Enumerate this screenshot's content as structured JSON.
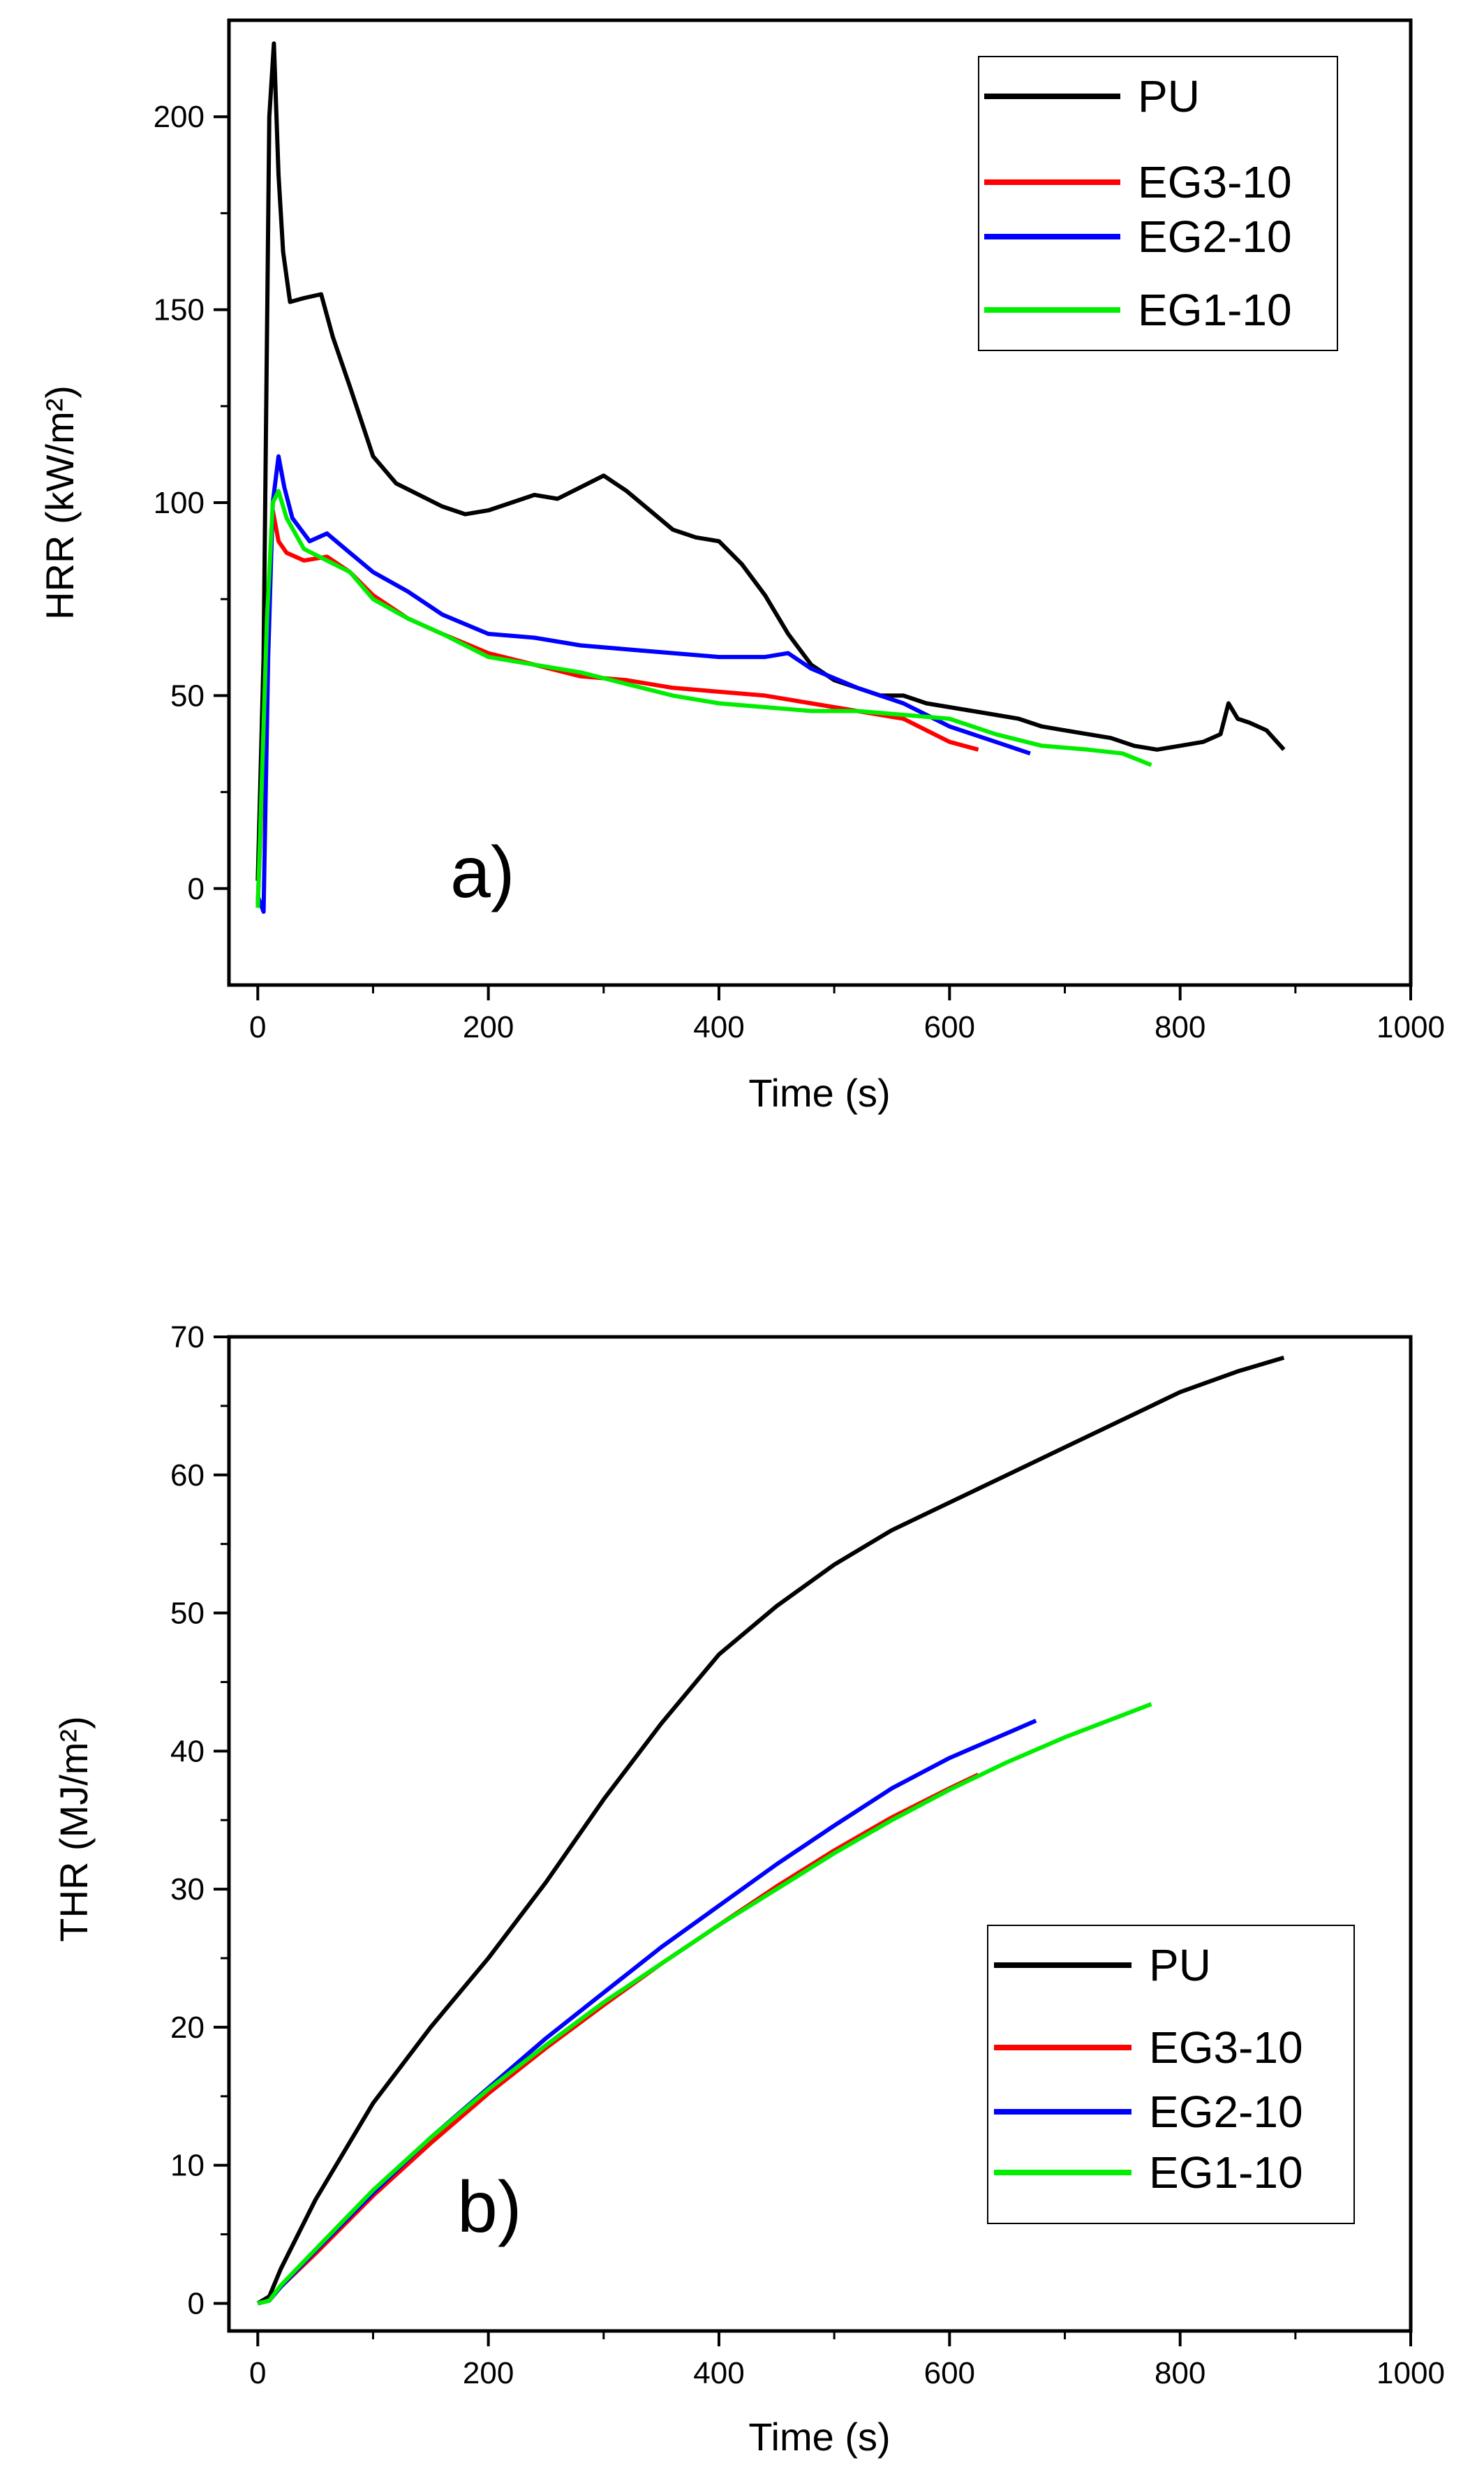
{
  "colors": {
    "PU": "#000000",
    "EG3-10": "#ff0000",
    "EG2-10": "#0000ff",
    "EG1-10": "#00ee00"
  },
  "chart_data": [
    {
      "type": "line",
      "panel_label": "a)",
      "xlabel": "Time (s)",
      "ylabel": "HRR (kW/m²)",
      "xlim": [
        -25,
        1000
      ],
      "ylim": [
        -25,
        225
      ],
      "xticks": [
        0,
        200,
        400,
        600,
        800,
        1000
      ],
      "yticks": [
        0,
        50,
        100,
        150,
        200
      ],
      "xtick_labels": [
        "0",
        "200",
        "400",
        "600",
        "800",
        "1000"
      ],
      "ytick_labels": [
        "0",
        "50",
        "100",
        "150",
        "200"
      ],
      "legend_position": "top-right",
      "series": [
        {
          "name": "PU",
          "x": [
            0,
            5,
            10,
            14,
            18,
            22,
            28,
            40,
            55,
            65,
            80,
            100,
            120,
            140,
            160,
            180,
            200,
            220,
            240,
            260,
            280,
            300,
            320,
            340,
            360,
            380,
            400,
            420,
            440,
            460,
            480,
            500,
            520,
            540,
            560,
            580,
            600,
            620,
            640,
            660,
            680,
            700,
            720,
            740,
            760,
            780,
            800,
            820,
            835,
            842,
            850,
            860,
            875,
            890
          ],
          "y": [
            2,
            60,
            200,
            219,
            185,
            165,
            152,
            153,
            154,
            143,
            130,
            112,
            105,
            102,
            99,
            97,
            98,
            100,
            102,
            101,
            104,
            107,
            103,
            98,
            93,
            91,
            90,
            84,
            76,
            66,
            58,
            54,
            52,
            50,
            50,
            48,
            47,
            46,
            45,
            44,
            42,
            41,
            40,
            39,
            37,
            36,
            37,
            38,
            40,
            48,
            44,
            43,
            41,
            36
          ]
        },
        {
          "name": "EG3-10",
          "x": [
            0,
            8,
            13,
            18,
            25,
            40,
            60,
            80,
            100,
            130,
            160,
            200,
            240,
            280,
            320,
            360,
            400,
            440,
            480,
            520,
            560,
            600,
            625
          ],
          "y": [
            -4,
            60,
            98,
            90,
            87,
            85,
            86,
            82,
            76,
            70,
            66,
            61,
            58,
            55,
            54,
            52,
            51,
            50,
            48,
            46,
            44,
            38,
            36
          ]
        },
        {
          "name": "EG2-10",
          "x": [
            0,
            5,
            9,
            13,
            18,
            23,
            30,
            45,
            60,
            80,
            100,
            130,
            160,
            200,
            240,
            280,
            320,
            360,
            400,
            440,
            460,
            480,
            520,
            560,
            600,
            640,
            670
          ],
          "y": [
            -2,
            -6,
            60,
            100,
            112,
            104,
            96,
            90,
            92,
            87,
            82,
            77,
            71,
            66,
            65,
            63,
            62,
            61,
            60,
            60,
            61,
            57,
            52,
            48,
            42,
            38,
            35
          ]
        },
        {
          "name": "EG1-10",
          "x": [
            0,
            8,
            13,
            18,
            25,
            40,
            60,
            80,
            100,
            130,
            160,
            200,
            240,
            280,
            320,
            360,
            400,
            440,
            480,
            520,
            560,
            600,
            640,
            680,
            720,
            750,
            775
          ],
          "y": [
            -5,
            70,
            100,
            103,
            96,
            88,
            85,
            82,
            75,
            70,
            66,
            60,
            58,
            56,
            53,
            50,
            48,
            47,
            46,
            46,
            45,
            44,
            40,
            37,
            36,
            35,
            32
          ]
        }
      ]
    },
    {
      "type": "line",
      "panel_label": "b)",
      "xlabel": "Time (s)",
      "ylabel": "THR (MJ/m²)",
      "xlim": [
        -25,
        1000
      ],
      "ylim": [
        -2,
        70
      ],
      "xticks": [
        0,
        200,
        400,
        600,
        800,
        1000
      ],
      "yticks": [
        0,
        10,
        20,
        30,
        40,
        50,
        60,
        70
      ],
      "xtick_labels": [
        "0",
        "200",
        "400",
        "600",
        "800",
        "1000"
      ],
      "ytick_labels": [
        "0",
        "10",
        "20",
        "30",
        "40",
        "50",
        "60",
        "70"
      ],
      "legend_position": "bottom-right",
      "series": [
        {
          "name": "PU",
          "x": [
            0,
            10,
            20,
            50,
            100,
            150,
            200,
            250,
            300,
            350,
            400,
            450,
            500,
            550,
            600,
            650,
            700,
            750,
            800,
            850,
            890
          ],
          "y": [
            0,
            0.5,
            2.5,
            7.5,
            14.5,
            20,
            25,
            30.5,
            36.5,
            42,
            47,
            50.5,
            53.5,
            56,
            58,
            60,
            62,
            64,
            66,
            67.5,
            68.5
          ]
        },
        {
          "name": "EG3-10",
          "x": [
            0,
            10,
            20,
            50,
            100,
            150,
            200,
            250,
            300,
            350,
            400,
            450,
            500,
            550,
            600,
            625
          ],
          "y": [
            0,
            0.2,
            1.2,
            3.6,
            7.8,
            11.6,
            15.2,
            18.5,
            21.6,
            24.6,
            27.4,
            30.2,
            32.8,
            35.2,
            37.3,
            38.3
          ]
        },
        {
          "name": "EG2-10",
          "x": [
            0,
            10,
            20,
            50,
            100,
            150,
            200,
            250,
            300,
            350,
            400,
            450,
            500,
            550,
            600,
            650,
            675
          ],
          "y": [
            0,
            0.2,
            1.2,
            3.8,
            8.0,
            12.0,
            15.6,
            19.2,
            22.5,
            25.8,
            28.8,
            31.8,
            34.6,
            37.3,
            39.5,
            41.3,
            42.2
          ]
        },
        {
          "name": "EG1-10",
          "x": [
            0,
            10,
            20,
            50,
            100,
            150,
            200,
            250,
            300,
            350,
            400,
            450,
            500,
            550,
            600,
            650,
            700,
            750,
            775
          ],
          "y": [
            0,
            0.2,
            1.3,
            3.9,
            8.2,
            12.0,
            15.5,
            18.7,
            21.8,
            24.6,
            27.4,
            30.0,
            32.6,
            35.0,
            37.2,
            39.2,
            41.0,
            42.6,
            43.4
          ]
        }
      ]
    }
  ]
}
